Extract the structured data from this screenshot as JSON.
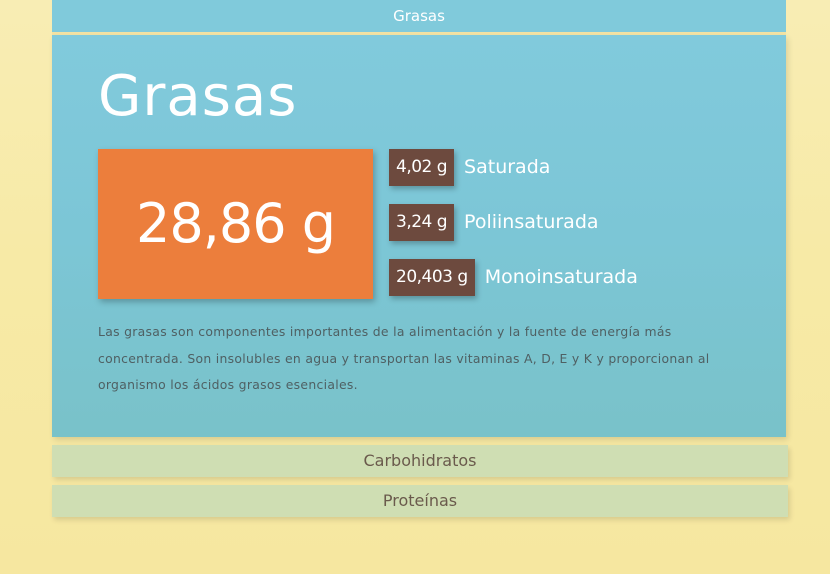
{
  "accordion": {
    "active_tab_label": "Grasas",
    "panel": {
      "title": "Grasas",
      "total": "28,86 g",
      "fat_types": [
        {
          "value": "4,02 g",
          "label": "Saturada"
        },
        {
          "value": "3,24 g",
          "label": "Poliinsaturada"
        },
        {
          "value": "20,403 g",
          "label": "Monoinsaturada"
        }
      ],
      "description": "Las grasas son componentes importantes de la alimentación y la fuente de energía más concentrada. Son insolubles en agua y transportan las vitaminas A, D, E y K y proporcionan al organismo los ácidos grasos esenciales."
    },
    "tabs": [
      {
        "label": "Carbohidratos"
      },
      {
        "label": "Proteínas"
      }
    ]
  },
  "colors": {
    "panel_blue": "#80cadb",
    "total_orange": "#ec7e3c",
    "value_brown": "#6d4a3e",
    "collapsed_tab_green": "#cfdeb3",
    "page_background": "#f7eaa6"
  }
}
